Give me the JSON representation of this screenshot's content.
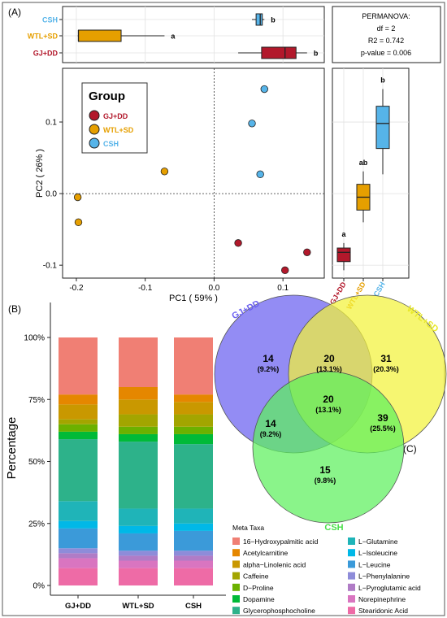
{
  "panel_labels": {
    "a": "(A)",
    "b": "(B)",
    "c": "(C)"
  },
  "permanova": {
    "title": "PERMANOVA:",
    "df": "df = 2",
    "r2": "R2 = 0.742",
    "p": "p-value = 0.006"
  },
  "legend_group": {
    "title": "Group",
    "items": [
      {
        "label": "GJ+DD",
        "color": "#B2182B"
      },
      {
        "label": "WTL+SD",
        "color": "#E69F00"
      },
      {
        "label": "CSH",
        "color": "#56B4E9"
      }
    ]
  },
  "meta_legend": {
    "title": "Meta Taxa",
    "items": [
      {
        "label": "16−Hydroxypalmitic acid",
        "color": "#F07F74"
      },
      {
        "label": "Acetylcarnitine",
        "color": "#E58700"
      },
      {
        "label": "alpha−Linolenic acid",
        "color": "#C99800"
      },
      {
        "label": "Caffeine",
        "color": "#A3A500"
      },
      {
        "label": "D−Proline",
        "color": "#6BB100"
      },
      {
        "label": "Dopamine",
        "color": "#00BA38"
      },
      {
        "label": "Glycerophosphocholine",
        "color": "#2DB28A"
      },
      {
        "label": "L−Glutamine",
        "color": "#1FB4B8"
      },
      {
        "label": "L−Isoleucine",
        "color": "#00B8E7"
      },
      {
        "label": "L−Leucine",
        "color": "#3B9AD9"
      },
      {
        "label": "L−Phenylalanine",
        "color": "#8E8CD9"
      },
      {
        "label": "L−Pyroglutamic acid",
        "color": "#B07CC6"
      },
      {
        "label": "Norepinephrine",
        "color": "#D975C0"
      },
      {
        "label": "Stearidonic Acid",
        "color": "#EE6BA6"
      }
    ]
  },
  "chart_data": [
    {
      "id": "pca_scatter",
      "type": "scatter",
      "xlabel": "PC1 ( 59% )",
      "ylabel": "PC2 ( 26% )",
      "xlim": [
        -0.22,
        0.16
      ],
      "ylim": [
        -0.118,
        0.175
      ],
      "xticks": [
        -0.2,
        -0.1,
        0.0,
        0.1
      ],
      "xtick_labels": [
        "-0.2",
        "-0.1",
        "0.0",
        "0.1"
      ],
      "yticks": [
        -0.1,
        0.0,
        0.1
      ],
      "ytick_labels": [
        "-0.1",
        "0.0",
        "0.1"
      ],
      "series": [
        {
          "name": "GJ+DD",
          "color": "#B2182B",
          "points": [
            [
              0.035,
              -0.069
            ],
            [
              0.135,
              -0.082
            ],
            [
              0.103,
              -0.107
            ]
          ]
        },
        {
          "name": "WTL+SD",
          "color": "#E69F00",
          "points": [
            [
              -0.072,
              0.031
            ],
            [
              -0.198,
              -0.005
            ],
            [
              -0.197,
              -0.04
            ]
          ]
        },
        {
          "name": "CSH",
          "color": "#56B4E9",
          "points": [
            [
              0.073,
              0.146
            ],
            [
              0.055,
              0.098
            ],
            [
              0.067,
              0.027
            ]
          ]
        }
      ]
    },
    {
      "id": "pc1_boxplot",
      "type": "boxplot",
      "orientation": "horizontal",
      "axis": "PC1",
      "groups": [
        {
          "name": "CSH",
          "color": "#56B4E9",
          "min": 0.055,
          "q1": 0.061,
          "median": 0.067,
          "q3": 0.07,
          "max": 0.073,
          "letter": "b"
        },
        {
          "name": "WTL+SD",
          "color": "#E69F00",
          "min": -0.198,
          "q1": -0.197,
          "median": -0.197,
          "q3": -0.135,
          "max": -0.072,
          "letter": "a"
        },
        {
          "name": "GJ+DD",
          "color": "#B2182B",
          "min": 0.035,
          "q1": 0.069,
          "median": 0.103,
          "q3": 0.119,
          "max": 0.135,
          "letter": "b"
        }
      ]
    },
    {
      "id": "pc2_boxplot",
      "type": "boxplot",
      "orientation": "vertical",
      "axis": "PC2",
      "groups": [
        {
          "name": "GJ+DD",
          "color": "#B2182B",
          "min": -0.107,
          "q1": -0.095,
          "median": -0.082,
          "q3": -0.076,
          "max": -0.069,
          "letter": "a"
        },
        {
          "name": "WTL+SD",
          "color": "#E69F00",
          "min": -0.04,
          "q1": -0.023,
          "median": -0.005,
          "q3": 0.013,
          "max": 0.031,
          "letter": "ab"
        },
        {
          "name": "CSH",
          "color": "#56B4E9",
          "min": 0.027,
          "q1": 0.063,
          "median": 0.098,
          "q3": 0.122,
          "max": 0.146,
          "letter": "b"
        }
      ]
    },
    {
      "id": "stacked_bar",
      "type": "bar",
      "stacked": true,
      "categories": [
        "GJ+DD",
        "WTL+SD",
        "CSH"
      ],
      "ylabel": "Percentage",
      "ylim": [
        0,
        100
      ],
      "yticks": [
        0,
        25,
        50,
        75,
        100
      ],
      "ytick_labels": [
        "0%",
        "25%",
        "50%",
        "75%",
        "100%"
      ],
      "series": [
        {
          "name": "Stearidonic Acid",
          "values": [
            7,
            7,
            7
          ]
        },
        {
          "name": "Norepinephrine",
          "values": [
            4,
            3,
            3
          ]
        },
        {
          "name": "L−Pyroglutamic acid",
          "values": [
            2,
            2,
            2
          ]
        },
        {
          "name": "L−Phenylalanine",
          "values": [
            2,
            2,
            2
          ]
        },
        {
          "name": "L−Leucine",
          "values": [
            8,
            7,
            8
          ]
        },
        {
          "name": "L−Isoleucine",
          "values": [
            3,
            3,
            3
          ]
        },
        {
          "name": "L−Glutamine",
          "values": [
            8,
            7,
            6
          ]
        },
        {
          "name": "Glycerophosphocholine",
          "values": [
            25,
            27,
            26
          ]
        },
        {
          "name": "Dopamine",
          "values": [
            3,
            3,
            4
          ]
        },
        {
          "name": "D−Proline",
          "values": [
            3,
            3,
            3
          ]
        },
        {
          "name": "Caffeine",
          "values": [
            2,
            5,
            5
          ]
        },
        {
          "name": "alpha−Linolenic acid",
          "values": [
            6,
            6,
            5
          ]
        },
        {
          "name": "Acetylcarnitine",
          "values": [
            4,
            5,
            3
          ]
        },
        {
          "name": "16−Hydroxypalmitic acid",
          "values": [
            23,
            20,
            23
          ]
        }
      ]
    },
    {
      "id": "venn",
      "type": "venn",
      "sets": [
        {
          "name": "GJ+DD",
          "color": "#6A5FF0"
        },
        {
          "name": "WTL+SD",
          "color": "#F2F23A"
        },
        {
          "name": "CSH",
          "color": "#5DF05D"
        }
      ],
      "regions": [
        {
          "sets": [
            "GJ+DD"
          ],
          "count": "14",
          "pct": "(9.2%)"
        },
        {
          "sets": [
            "WTL+SD"
          ],
          "count": "31",
          "pct": "(20.3%)"
        },
        {
          "sets": [
            "CSH"
          ],
          "count": "15",
          "pct": "(9.8%)"
        },
        {
          "sets": [
            "GJ+DD",
            "WTL+SD"
          ],
          "count": "20",
          "pct": "(13.1%)"
        },
        {
          "sets": [
            "GJ+DD",
            "CSH"
          ],
          "count": "14",
          "pct": "(9.2%)"
        },
        {
          "sets": [
            "WTL+SD",
            "CSH"
          ],
          "count": "39",
          "pct": "(25.5%)"
        },
        {
          "sets": [
            "GJ+DD",
            "WTL+SD",
            "CSH"
          ],
          "count": "20",
          "pct": "(13.1%)"
        }
      ]
    }
  ]
}
